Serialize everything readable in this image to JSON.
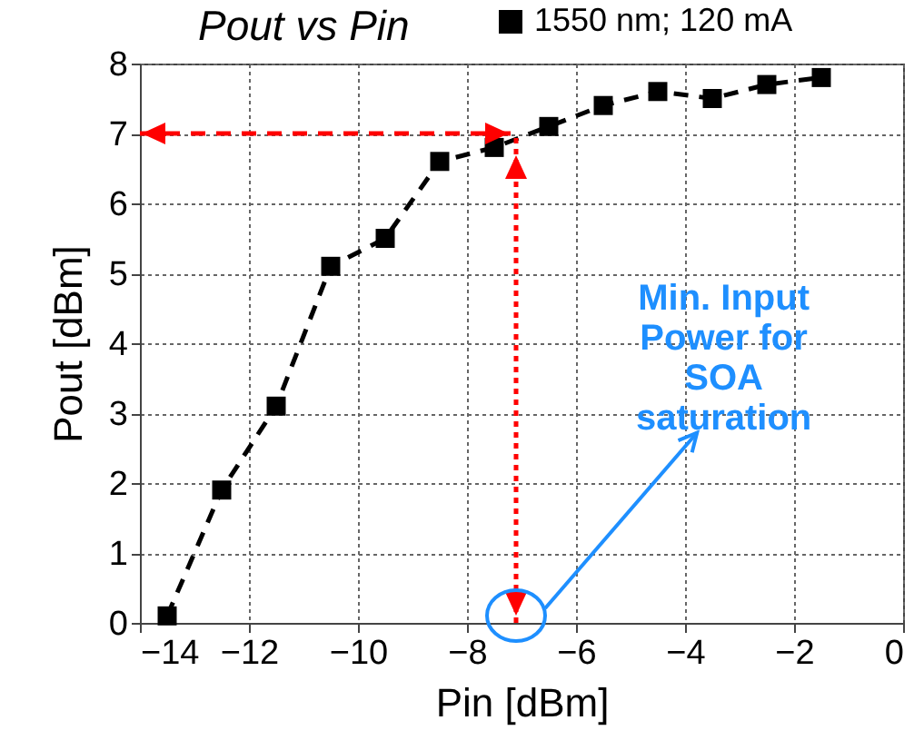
{
  "chart_data": {
    "type": "line",
    "title": "Pout vs Pin",
    "xlabel": "Pin [dBm]",
    "ylabel": "Pout [dBm]",
    "x": [
      -13.5,
      -12.5,
      -11.5,
      -10.5,
      -9.5,
      -8.5,
      -7.5,
      -6.5,
      -5.5,
      -4.5,
      -3.5,
      -2.5,
      -1.5
    ],
    "series": [
      {
        "name": "1550 nm; 120 mA",
        "color": "#000000",
        "values": [
          0.1,
          1.9,
          3.1,
          5.1,
          5.5,
          6.6,
          6.8,
          7.1,
          7.4,
          7.6,
          7.5,
          7.7,
          7.8
        ]
      }
    ],
    "marker": "square",
    "line_style": "dashed",
    "grid": true,
    "legend": "top right",
    "xlim": [
      -14,
      0
    ],
    "xticks": [
      -14,
      -12,
      -10,
      -8,
      -6,
      -4,
      -2,
      0
    ],
    "ylim": [
      0,
      8
    ],
    "yticks": [
      0,
      1,
      2,
      3,
      4,
      5,
      6,
      7,
      8
    ],
    "ref_lines": [
      {
        "axis": "y",
        "value": 7,
        "color": "#ff0000",
        "line_style": "dashed"
      },
      {
        "axis": "x",
        "value": -7.1,
        "color": "#ff0000",
        "line_style": "dotted"
      }
    ],
    "annotations": [
      "Min. Input\nPower for\nSOA\nsaturation"
    ]
  }
}
